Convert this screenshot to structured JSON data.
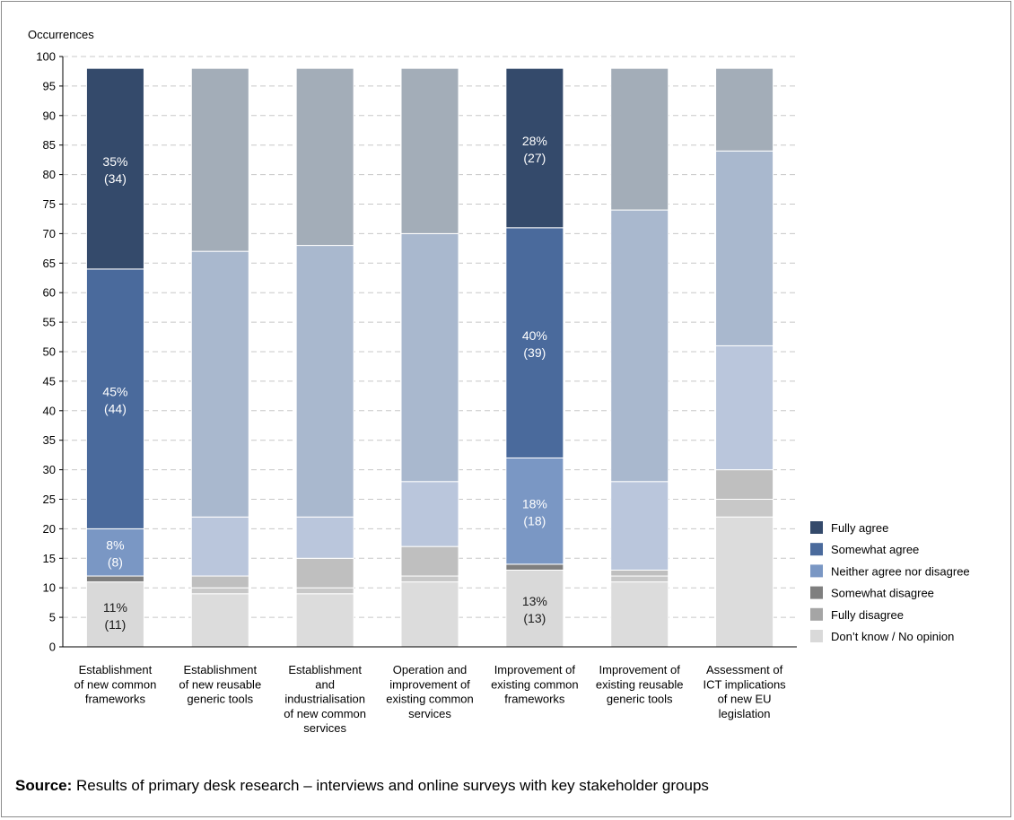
{
  "chart_data": {
    "type": "bar",
    "stacked": true,
    "ylabel": "Occurrences",
    "ylim": [
      0,
      100
    ],
    "ytick_step": 5,
    "grid": true,
    "legend_position": "right",
    "categories": [
      [
        "Establishment",
        "of new common",
        "frameworks"
      ],
      [
        "Establishment",
        "of new reusable",
        "generic tools"
      ],
      [
        "Establishment",
        "and",
        "industrialisation",
        "of new common",
        "services"
      ],
      [
        "Operation and",
        "improvement of",
        "existing common",
        "services"
      ],
      [
        "Improvement of",
        "existing common",
        "frameworks"
      ],
      [
        "Improvement of",
        "existing reusable",
        "generic tools"
      ],
      [
        "Assessment of",
        "ICT implications",
        "of new EU",
        "legislation"
      ]
    ],
    "series": [
      {
        "name": "Don’t know / No opinion",
        "color": "#d9d9d9",
        "muted": "#dcdcdc",
        "values": [
          11,
          9,
          9,
          11,
          13,
          11,
          22
        ],
        "labels": [
          [
            "11%",
            "(11)"
          ],
          null,
          null,
          null,
          [
            "13%",
            "(13)"
          ],
          null,
          null
        ]
      },
      {
        "name": "Fully disagree",
        "color": "#a5a5a5",
        "muted": "#c8c8c8",
        "values": [
          0,
          1,
          1,
          1,
          0,
          1,
          3
        ],
        "labels": [
          null,
          null,
          null,
          null,
          null,
          null,
          null
        ]
      },
      {
        "name": "Somewhat disagree",
        "color": "#7f7f7f",
        "muted": "#bfbfbf",
        "values": [
          1,
          2,
          5,
          5,
          1,
          1,
          5
        ],
        "labels": [
          null,
          null,
          null,
          null,
          null,
          null,
          null
        ]
      },
      {
        "name": "Neither agree nor disagree",
        "color": "#7a97c4",
        "muted": "#bac6dc",
        "values": [
          8,
          10,
          7,
          11,
          18,
          15,
          21
        ],
        "labels": [
          [
            "8%",
            "(8)"
          ],
          null,
          null,
          null,
          [
            "18%",
            "(18)"
          ],
          null,
          null
        ]
      },
      {
        "name": "Somewhat agree",
        "color": "#4a6a9c",
        "muted": "#a9b8ce",
        "values": [
          44,
          45,
          46,
          42,
          39,
          46,
          33
        ],
        "labels": [
          [
            "45%",
            "(44)"
          ],
          null,
          null,
          null,
          [
            "40%",
            "(39)"
          ],
          null,
          null
        ]
      },
      {
        "name": "Fully agree",
        "color": "#344a6b",
        "muted": "#a3adb8",
        "values": [
          34,
          31,
          30,
          28,
          27,
          24,
          14
        ],
        "labels": [
          [
            "35%",
            "(34)"
          ],
          null,
          null,
          null,
          [
            "28%",
            "(27)"
          ],
          null,
          null
        ]
      }
    ],
    "highlighted_categories": [
      0,
      4
    ]
  },
  "legend": {
    "items": [
      {
        "label": "Fully agree",
        "color": "#344a6b"
      },
      {
        "label": "Somewhat agree",
        "color": "#4a6a9c"
      },
      {
        "label": "Neither agree nor disagree",
        "color": "#7a97c4"
      },
      {
        "label": "Somewhat disagree",
        "color": "#7f7f7f"
      },
      {
        "label": "Fully disagree",
        "color": "#a5a5a5"
      },
      {
        "label": "Don’t know / No opinion",
        "color": "#d9d9d9"
      }
    ]
  },
  "source": {
    "label": "Source:",
    "text": " Results of primary desk research – interviews and online surveys with key stakeholder groups"
  }
}
